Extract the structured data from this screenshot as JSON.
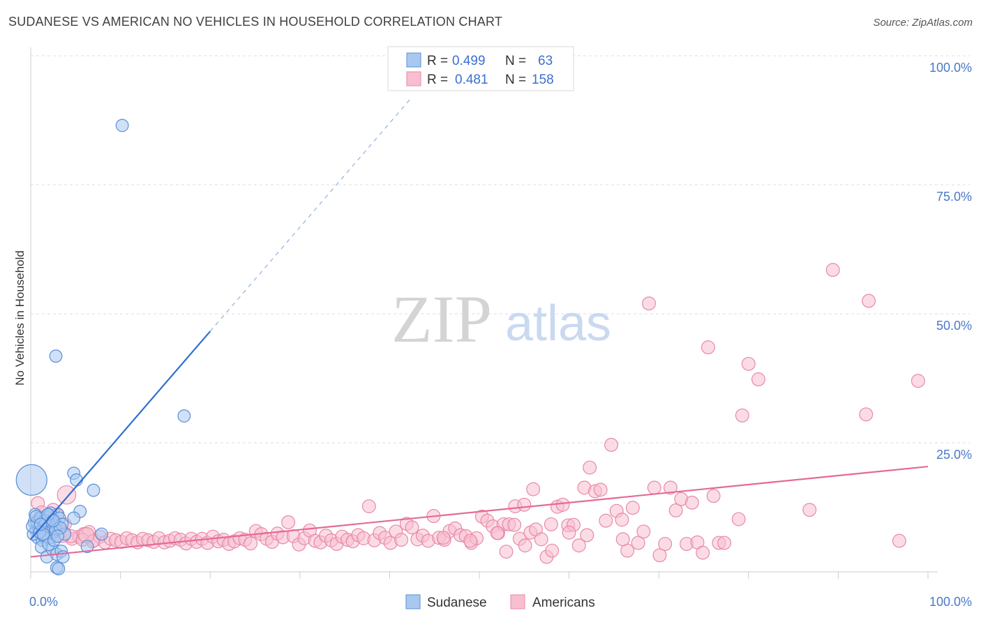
{
  "title": "SUDANESE VS AMERICAN NO VEHICLES IN HOUSEHOLD CORRELATION CHART",
  "source": "Source: ZipAtlas.com",
  "watermark": {
    "zip": "ZIP",
    "atlas": "atlas"
  },
  "legend": {
    "rows": [
      {
        "r_label": "R =",
        "r_value": "0.499",
        "n_label": "N =",
        "n_value": "63"
      },
      {
        "r_label": "R =",
        "r_value": "0.481",
        "n_label": "N =",
        "n_value": "158"
      }
    ]
  },
  "bottom_legend": {
    "series1": "Sudanese",
    "series2": "Americans"
  },
  "colors": {
    "sudanese_fill": "#a9c8f0",
    "sudanese_stroke": "#5b8fd8",
    "sudanese_line": "#2f6fd0",
    "americans_fill": "#f7bfd0",
    "americans_stroke": "#e888a8",
    "americans_line": "#e46a96",
    "tick": "#4a78c8",
    "grid": "#dcdcdc"
  },
  "chart_data": {
    "type": "scatter",
    "title": "SUDANESE VS AMERICAN NO VEHICLES IN HOUSEHOLD CORRELATION CHART",
    "xlabel": "",
    "ylabel": "No Vehicles in Household",
    "xlim": [
      0,
      100
    ],
    "ylim": [
      0,
      100
    ],
    "x_tick_labels": [
      "0.0%",
      "100.0%"
    ],
    "y_tick_labels": [
      {
        "value": 100,
        "label": "100.0%"
      },
      {
        "value": 75,
        "label": "75.0%"
      },
      {
        "value": 50,
        "label": "50.0%"
      },
      {
        "value": 25,
        "label": "25.0%"
      }
    ],
    "series": [
      {
        "name": "Sudanese",
        "R": 0.499,
        "N": 63,
        "trend": {
          "x0": 0,
          "y0": 6.3,
          "x1": 20,
          "y1": 46.6,
          "dash_x1": 42.5,
          "dash_y1": 92
        },
        "points": [
          [
            0.1,
            17.8,
            4
          ],
          [
            0.4,
            9.6,
            1.6
          ],
          [
            0.6,
            8.1,
            1.6
          ],
          [
            0.8,
            6.6,
            1.6
          ],
          [
            1.0,
            10.4,
            1.6
          ],
          [
            1.2,
            7.3,
            1.6
          ],
          [
            1.4,
            9.2,
            1.6
          ],
          [
            1.6,
            8.5,
            1.6
          ],
          [
            1.8,
            6.9,
            1.6
          ],
          [
            2.0,
            11.1,
            1.6
          ],
          [
            2.2,
            8.8,
            1.6
          ],
          [
            2.4,
            7.7,
            1.6
          ],
          [
            2.6,
            10.0,
            1.6
          ],
          [
            2.8,
            9.2,
            1.6
          ],
          [
            0.5,
            11.1,
            1.6
          ],
          [
            0.9,
            8.5,
            1.6
          ],
          [
            1.3,
            6.1,
            1.6
          ],
          [
            1.7,
            10.7,
            1.6
          ],
          [
            2.1,
            6.6,
            1.6
          ],
          [
            2.5,
            8.1,
            1.6
          ],
          [
            3.0,
            11.1,
            1.6
          ],
          [
            0.3,
            7.3,
            1.6
          ],
          [
            0.7,
            9.6,
            1.6
          ],
          [
            1.1,
            10.4,
            1.6
          ],
          [
            1.5,
            6.9,
            1.6
          ],
          [
            1.9,
            8.8,
            1.6
          ],
          [
            2.3,
            9.6,
            1.6
          ],
          [
            2.7,
            7.7,
            1.6
          ],
          [
            0.2,
            8.8,
            1.6
          ],
          [
            1.0,
            7.7,
            1.6
          ],
          [
            1.6,
            9.9,
            1.6
          ],
          [
            2.2,
            11.4,
            1.6
          ],
          [
            2.8,
            8.1,
            1.6
          ],
          [
            3.2,
            10.4,
            1.6
          ],
          [
            3.5,
            9.2,
            1.6
          ],
          [
            1.2,
            4.8,
            1.6
          ],
          [
            1.8,
            2.9,
            1.6
          ],
          [
            2.4,
            4.4,
            1.6
          ],
          [
            2.9,
            3.4,
            1.6
          ],
          [
            3.4,
            4.0,
            1.6
          ],
          [
            3.6,
            2.9,
            1.6
          ],
          [
            2.9,
            0.8,
            1.6
          ],
          [
            3.1,
            0.6,
            1.6
          ],
          [
            2.8,
            41.8,
            1.6
          ],
          [
            10.2,
            86.5,
            1.6
          ],
          [
            17.1,
            30.2,
            1.6
          ],
          [
            4.8,
            19.1,
            1.6
          ],
          [
            5.1,
            17.8,
            1.6
          ],
          [
            7.0,
            15.8,
            1.6
          ],
          [
            5.5,
            11.7,
            1.6
          ],
          [
            4.8,
            10.4,
            1.6
          ],
          [
            7.9,
            7.3,
            1.6
          ],
          [
            6.3,
            4.9,
            1.6
          ],
          [
            3.8,
            7.3,
            1.6
          ],
          [
            2.0,
            5.3,
            1.6
          ],
          [
            1.4,
            7.3,
            1.6
          ],
          [
            2.6,
            6.1,
            1.6
          ],
          [
            0.6,
            10.7,
            1.6
          ],
          [
            3.3,
            8.5,
            1.6
          ],
          [
            1.9,
            11.1,
            1.6
          ],
          [
            2.5,
            9.9,
            1.6
          ],
          [
            3.0,
            6.9,
            1.6
          ],
          [
            1.1,
            9.2,
            1.6
          ]
        ]
      },
      {
        "name": "Americans",
        "R": 0.481,
        "N": 158,
        "trend": {
          "x0": 0,
          "y0": 2.9,
          "x1": 100,
          "y1": 20.4
        },
        "points": [
          [
            0.8,
            13.3,
            1.7
          ],
          [
            1.5,
            10.7,
            1.7
          ],
          [
            2.0,
            9.9,
            1.7
          ],
          [
            3.0,
            11.1,
            1.7
          ],
          [
            3.8,
            9.2,
            1.7
          ],
          [
            4.0,
            14.9,
            2.4
          ],
          [
            4.6,
            6.4,
            1.7
          ],
          [
            5.4,
            6.8,
            1.7
          ],
          [
            5.9,
            7.3,
            1.7
          ],
          [
            6.5,
            7.7,
            1.7
          ],
          [
            7.1,
            6.1,
            1.7
          ],
          [
            7.7,
            6.8,
            1.7
          ],
          [
            8.3,
            5.7,
            1.7
          ],
          [
            8.9,
            6.4,
            1.7
          ],
          [
            9.5,
            6.1,
            1.7
          ],
          [
            10.1,
            5.8,
            1.7
          ],
          [
            10.7,
            6.5,
            1.7
          ],
          [
            11.3,
            6.1,
            1.7
          ],
          [
            11.9,
            5.7,
            1.7
          ],
          [
            12.5,
            6.4,
            1.7
          ],
          [
            13.1,
            6.1,
            1.7
          ],
          [
            13.7,
            5.8,
            1.7
          ],
          [
            14.3,
            6.5,
            1.7
          ],
          [
            14.9,
            5.7,
            1.7
          ],
          [
            15.5,
            6.0,
            1.7
          ],
          [
            16.1,
            6.5,
            1.7
          ],
          [
            16.7,
            6.2,
            1.7
          ],
          [
            17.3,
            5.5,
            1.7
          ],
          [
            17.9,
            6.4,
            1.7
          ],
          [
            18.5,
            5.8,
            1.7
          ],
          [
            19.1,
            6.4,
            1.7
          ],
          [
            19.7,
            5.6,
            1.7
          ],
          [
            20.3,
            6.8,
            1.7
          ],
          [
            20.9,
            5.9,
            1.7
          ],
          [
            21.5,
            6.2,
            1.7
          ],
          [
            22.1,
            5.4,
            1.7
          ],
          [
            22.7,
            5.9,
            1.7
          ],
          [
            23.3,
            6.5,
            1.7
          ],
          [
            23.9,
            6.2,
            1.7
          ],
          [
            24.5,
            5.5,
            1.7
          ],
          [
            25.1,
            7.9,
            1.7
          ],
          [
            25.7,
            7.3,
            1.7
          ],
          [
            26.3,
            6.4,
            1.7
          ],
          [
            26.9,
            5.8,
            1.7
          ],
          [
            27.5,
            7.4,
            1.7
          ],
          [
            28.1,
            6.7,
            1.7
          ],
          [
            28.7,
            9.6,
            1.7
          ],
          [
            29.3,
            6.9,
            1.7
          ],
          [
            29.9,
            5.3,
            1.7
          ],
          [
            30.5,
            6.5,
            1.7
          ],
          [
            31.1,
            8.0,
            1.7
          ],
          [
            31.7,
            6.0,
            1.7
          ],
          [
            32.3,
            5.7,
            1.7
          ],
          [
            32.9,
            7.0,
            1.7
          ],
          [
            33.5,
            6.1,
            1.7
          ],
          [
            34.1,
            5.4,
            1.7
          ],
          [
            34.7,
            6.8,
            1.7
          ],
          [
            35.3,
            6.2,
            1.7
          ],
          [
            35.9,
            5.9,
            1.7
          ],
          [
            36.5,
            7.1,
            1.7
          ],
          [
            37.1,
            6.5,
            1.7
          ],
          [
            37.7,
            12.7,
            1.7
          ],
          [
            38.3,
            6.1,
            1.7
          ],
          [
            38.9,
            7.5,
            1.7
          ],
          [
            39.5,
            6.6,
            1.7
          ],
          [
            40.1,
            5.6,
            1.7
          ],
          [
            40.7,
            7.8,
            1.7
          ],
          [
            41.3,
            6.2,
            1.7
          ],
          [
            41.9,
            9.3,
            1.7
          ],
          [
            42.5,
            8.6,
            1.7
          ],
          [
            43.1,
            6.3,
            1.7
          ],
          [
            43.7,
            7.0,
            1.7
          ],
          [
            44.3,
            6.0,
            1.7
          ],
          [
            44.9,
            10.8,
            1.7
          ],
          [
            45.5,
            6.6,
            1.7
          ],
          [
            46.1,
            6.2,
            1.7
          ],
          [
            46.7,
            7.9,
            1.7
          ],
          [
            47.3,
            8.4,
            1.7
          ],
          [
            47.9,
            7.1,
            1.7
          ],
          [
            48.5,
            6.9,
            1.7
          ],
          [
            49.1,
            5.6,
            1.7
          ],
          [
            49.7,
            6.5,
            1.7
          ],
          [
            50.3,
            10.7,
            1.7
          ],
          [
            50.9,
            9.9,
            1.7
          ],
          [
            51.5,
            8.8,
            1.7
          ],
          [
            52.1,
            7.5,
            1.7
          ],
          [
            52.7,
            9.2,
            1.7
          ],
          [
            53.3,
            9.2,
            1.7
          ],
          [
            53.9,
            9.1,
            1.7
          ],
          [
            54.5,
            6.4,
            1.7
          ],
          [
            55.1,
            5.1,
            1.7
          ],
          [
            55.7,
            7.6,
            1.7
          ],
          [
            56.3,
            8.2,
            1.7
          ],
          [
            56.9,
            6.3,
            1.7
          ],
          [
            57.5,
            2.9,
            1.7
          ],
          [
            58.1,
            4.1,
            1.7
          ],
          [
            58.7,
            12.6,
            1.7
          ],
          [
            59.3,
            13.0,
            1.7
          ],
          [
            59.9,
            9.0,
            1.7
          ],
          [
            60.5,
            9.1,
            1.7
          ],
          [
            61.1,
            5.1,
            1.7
          ],
          [
            61.7,
            16.3,
            1.7
          ],
          [
            62.3,
            20.2,
            1.7
          ],
          [
            62.9,
            15.6,
            1.7
          ],
          [
            63.5,
            15.9,
            1.7
          ],
          [
            64.1,
            9.9,
            1.7
          ],
          [
            64.7,
            24.6,
            1.7
          ],
          [
            65.3,
            11.8,
            1.7
          ],
          [
            65.9,
            10.1,
            1.7
          ],
          [
            66.5,
            4.1,
            1.7
          ],
          [
            67.1,
            12.4,
            1.7
          ],
          [
            67.7,
            5.6,
            1.7
          ],
          [
            68.3,
            7.8,
            1.7
          ],
          [
            68.9,
            52.0,
            1.7
          ],
          [
            69.5,
            16.3,
            1.7
          ],
          [
            70.1,
            3.2,
            1.7
          ],
          [
            70.7,
            5.4,
            1.7
          ],
          [
            71.3,
            16.3,
            1.7
          ],
          [
            71.9,
            11.9,
            1.7
          ],
          [
            72.5,
            14.1,
            1.7
          ],
          [
            73.1,
            5.4,
            1.7
          ],
          [
            73.7,
            13.4,
            1.7
          ],
          [
            74.3,
            5.7,
            1.7
          ],
          [
            74.9,
            3.7,
            1.7
          ],
          [
            75.5,
            43.5,
            1.7
          ],
          [
            76.1,
            14.7,
            1.7
          ],
          [
            76.7,
            5.6,
            1.7
          ],
          [
            77.3,
            5.6,
            1.7
          ],
          [
            78.9,
            10.2,
            1.7
          ],
          [
            79.3,
            30.3,
            1.7
          ],
          [
            80.0,
            40.3,
            1.7
          ],
          [
            81.1,
            37.3,
            1.7
          ],
          [
            86.8,
            12.0,
            1.7
          ],
          [
            89.4,
            58.5,
            1.7
          ],
          [
            93.4,
            52.5,
            1.7
          ],
          [
            93.1,
            30.5,
            1.7
          ],
          [
            96.8,
            6.0,
            1.7
          ],
          [
            98.9,
            37.0,
            1.7
          ],
          [
            56.0,
            16.0,
            1.7
          ],
          [
            52.0,
            7.5,
            1.7
          ],
          [
            53.0,
            3.9,
            1.7
          ],
          [
            54.0,
            12.7,
            1.7
          ],
          [
            55.0,
            13.0,
            1.7
          ],
          [
            49.0,
            6.0,
            1.7
          ],
          [
            46.0,
            6.6,
            1.7
          ],
          [
            60.0,
            7.6,
            1.7
          ],
          [
            62.0,
            7.1,
            1.7
          ],
          [
            58.0,
            9.2,
            1.7
          ],
          [
            66.0,
            6.3,
            1.7
          ],
          [
            4.5,
            6.9,
            1.7
          ],
          [
            5.8,
            6.2,
            1.7
          ],
          [
            6.9,
            5.9,
            1.7
          ],
          [
            3.5,
            7.3,
            2.2
          ],
          [
            6.2,
            7.1,
            2.0
          ],
          [
            1.2,
            11.5,
            1.7
          ],
          [
            2.5,
            12.0,
            1.7
          ],
          [
            1.8,
            9.3,
            1.7
          ],
          [
            0.9,
            7.6,
            1.7
          ]
        ]
      }
    ]
  }
}
